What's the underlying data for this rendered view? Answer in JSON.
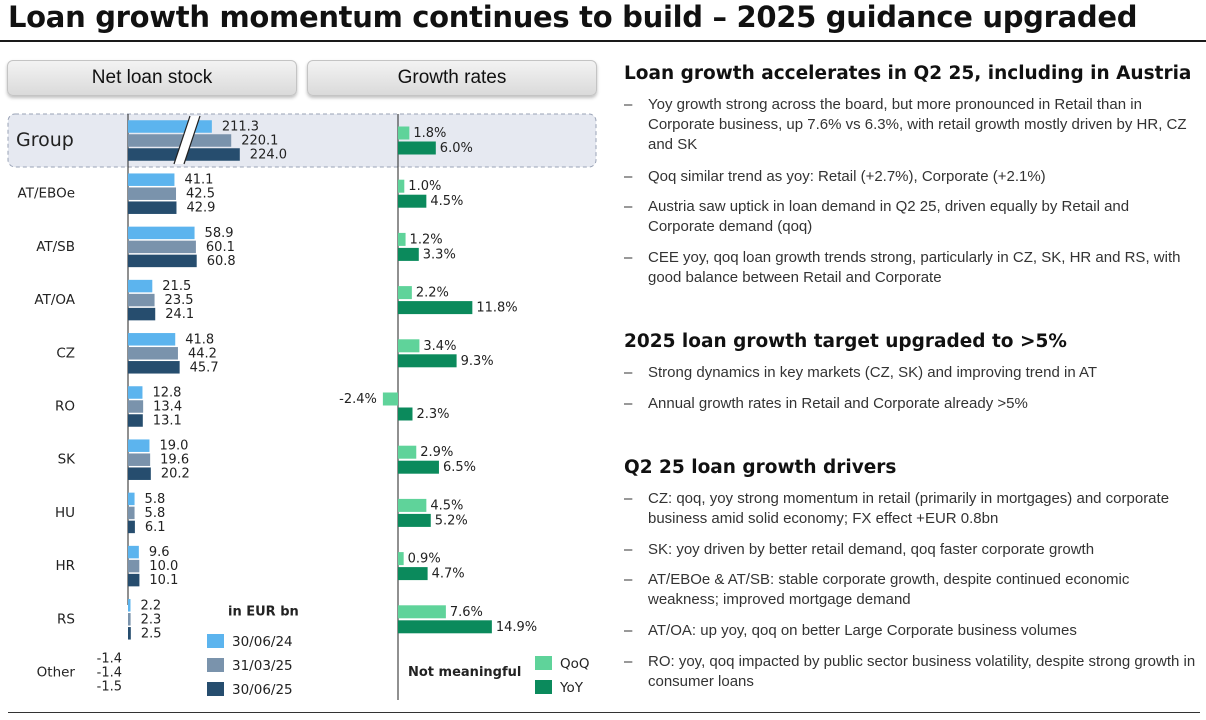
{
  "title": "Loan growth momentum continues to build – 2025 guidance upgraded",
  "tabs": {
    "left": "Net loan stock",
    "right": "Growth rates"
  },
  "chart_data": {
    "type": "bar",
    "categories": [
      "Group",
      "AT/EBOe",
      "AT/SB",
      "AT/OA",
      "CZ",
      "RO",
      "SK",
      "HU",
      "HR",
      "RS",
      "Other"
    ],
    "stock_series": [
      {
        "name": "30/06/24",
        "color": "#5cb4ee",
        "values": [
          211.3,
          41.1,
          58.9,
          21.5,
          41.8,
          12.8,
          19.0,
          5.8,
          9.6,
          2.2,
          -1.4
        ],
        "labels": [
          "211.3",
          "41.1",
          "58.9",
          "21.5",
          "41.8",
          "12.8",
          "19.0",
          "5.8",
          "9.6",
          "2.2",
          "-1.4"
        ]
      },
      {
        "name": "31/03/25",
        "color": "#7a93ac",
        "values": [
          220.1,
          42.5,
          60.1,
          23.5,
          44.2,
          13.4,
          19.6,
          5.8,
          10.0,
          2.3,
          -1.4
        ],
        "labels": [
          "220.1",
          "42.5",
          "60.1",
          "23.5",
          "44.2",
          "13.4",
          "19.6",
          "5.8",
          "10.0",
          "2.3",
          "-1.4"
        ]
      },
      {
        "name": "30/06/25",
        "color": "#264d6e",
        "values": [
          224.0,
          42.9,
          60.8,
          24.1,
          45.7,
          13.1,
          20.2,
          6.1,
          10.1,
          2.5,
          -1.5
        ],
        "labels": [
          "224.0",
          "42.9",
          "60.8",
          "24.1",
          "45.7",
          "13.1",
          "20.2",
          "6.1",
          "10.1",
          "2.5",
          "-1.5"
        ]
      }
    ],
    "growth_series": [
      {
        "name": "QoQ",
        "color": "#5fd39a",
        "values": [
          1.8,
          1.0,
          1.2,
          2.2,
          3.4,
          -2.4,
          2.9,
          4.5,
          0.9,
          7.6,
          null
        ],
        "labels": [
          "1.8%",
          "1.0%",
          "1.2%",
          "2.2%",
          "3.4%",
          "-2.4%",
          "2.9%",
          "4.5%",
          "0.9%",
          "7.6%",
          ""
        ]
      },
      {
        "name": "YoY",
        "color": "#0b8a5c",
        "values": [
          6.0,
          4.5,
          3.3,
          11.8,
          9.3,
          2.3,
          6.5,
          5.2,
          4.7,
          14.9,
          null
        ],
        "labels": [
          "6.0%",
          "4.5%",
          "3.3%",
          "11.8%",
          "9.3%",
          "2.3%",
          "6.5%",
          "5.2%",
          "4.7%",
          "14.9%",
          ""
        ]
      }
    ],
    "unit_label": "in EUR bn",
    "other_growth_note": "Not meaningful",
    "axis_break_on": "Group"
  },
  "sections": [
    {
      "heading": "Loan growth accelerates in Q2 25, including in Austria",
      "bullets": [
        "Yoy growth strong across the board, but more pronounced in Retail than in Corporate business, up 7.6% vs 6.3%, with retail growth mostly driven by HR, CZ and SK",
        "Qoq similar trend as yoy: Retail (+2.7%), Corporate (+2.1%)",
        "Austria saw uptick in loan demand in Q2 25, driven equally by Retail and Corporate demand (qoq)",
        "CEE yoy, qoq loan growth trends strong, particularly in CZ, SK, HR and RS, with good balance between Retail and Corporate"
      ]
    },
    {
      "heading": "2025 loan growth target upgraded to >5%",
      "bullets": [
        "Strong dynamics in key markets (CZ, SK) and improving trend in AT",
        "Annual growth rates in Retail and Corporate already >5%"
      ]
    },
    {
      "heading": "Q2 25 loan growth drivers",
      "bullets": [
        "CZ: qoq, yoy strong momentum in retail (primarily in mortgages) and corporate business amid solid economy; FX effect +EUR 0.8bn",
        "SK: yoy driven by better retail demand, qoq faster corporate growth",
        "AT/EBOe & AT/SB: stable corporate growth, despite continued economic weakness; improved mortgage demand",
        "AT/OA: up yoy, qoq on better Large Corporate business volumes",
        "RO: yoy, qoq impacted by public sector business volatility, despite strong growth in consumer loans"
      ]
    }
  ]
}
